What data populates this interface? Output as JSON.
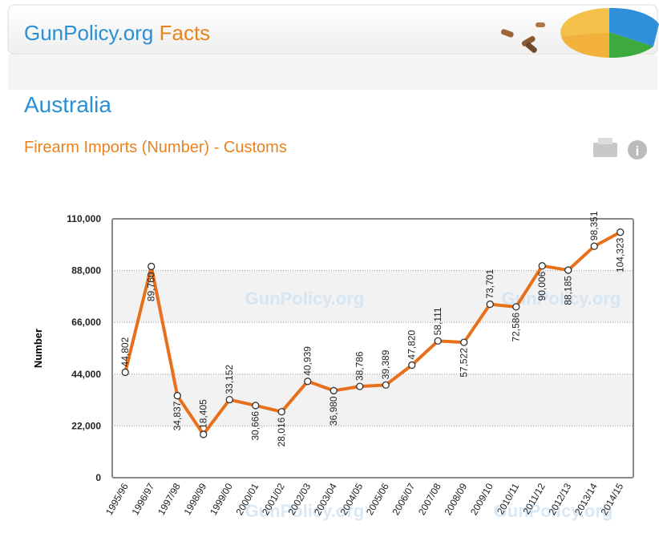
{
  "header": {
    "title": "GunPolicy.org",
    "title_suffix": "Facts"
  },
  "country": "Australia",
  "subtitle": "Firearm Imports (Number) - Customs",
  "chart_data": {
    "type": "line",
    "ylabel": "Number",
    "watermark": "GunPolicy.org",
    "categories": [
      "1995/96",
      "1996/97",
      "1997/98",
      "1998/99",
      "1999/00",
      "2000/01",
      "2001/02",
      "2002/03",
      "2003/04",
      "2004/05",
      "2005/06",
      "2006/07",
      "2007/08",
      "2008/09",
      "2009/10",
      "2010/11",
      "2011/12",
      "2012/13",
      "2013/14",
      "2014/15"
    ],
    "values": [
      44802,
      89760,
      34837,
      18405,
      33152,
      30666,
      28016,
      40939,
      36980,
      38786,
      39389,
      47820,
      58111,
      57522,
      73701,
      72586,
      90006,
      88185,
      98351,
      104323
    ],
    "value_labels": [
      "44,802",
      "89,760",
      "34,837",
      "18,405",
      "33,152",
      "30,666",
      "28,016",
      "40,939",
      "36,980",
      "38,786",
      "39,389",
      "47,820",
      "58,111",
      "57,522",
      "73,701",
      "72,586",
      "90,006",
      "88,185",
      "98,351",
      "104,323"
    ],
    "color": "#e8701a",
    "ylim": [
      0,
      110000
    ],
    "yticks": [
      0,
      {
        "value": 22000,
        "label": "22,000"
      },
      {
        "value": 44000,
        "label": "44,000"
      },
      {
        "value": 66000,
        "label": "66,000"
      },
      {
        "value": 88000,
        "label": "88,000"
      },
      {
        "value": 110000,
        "label": "110,000"
      }
    ],
    "grid": true
  }
}
